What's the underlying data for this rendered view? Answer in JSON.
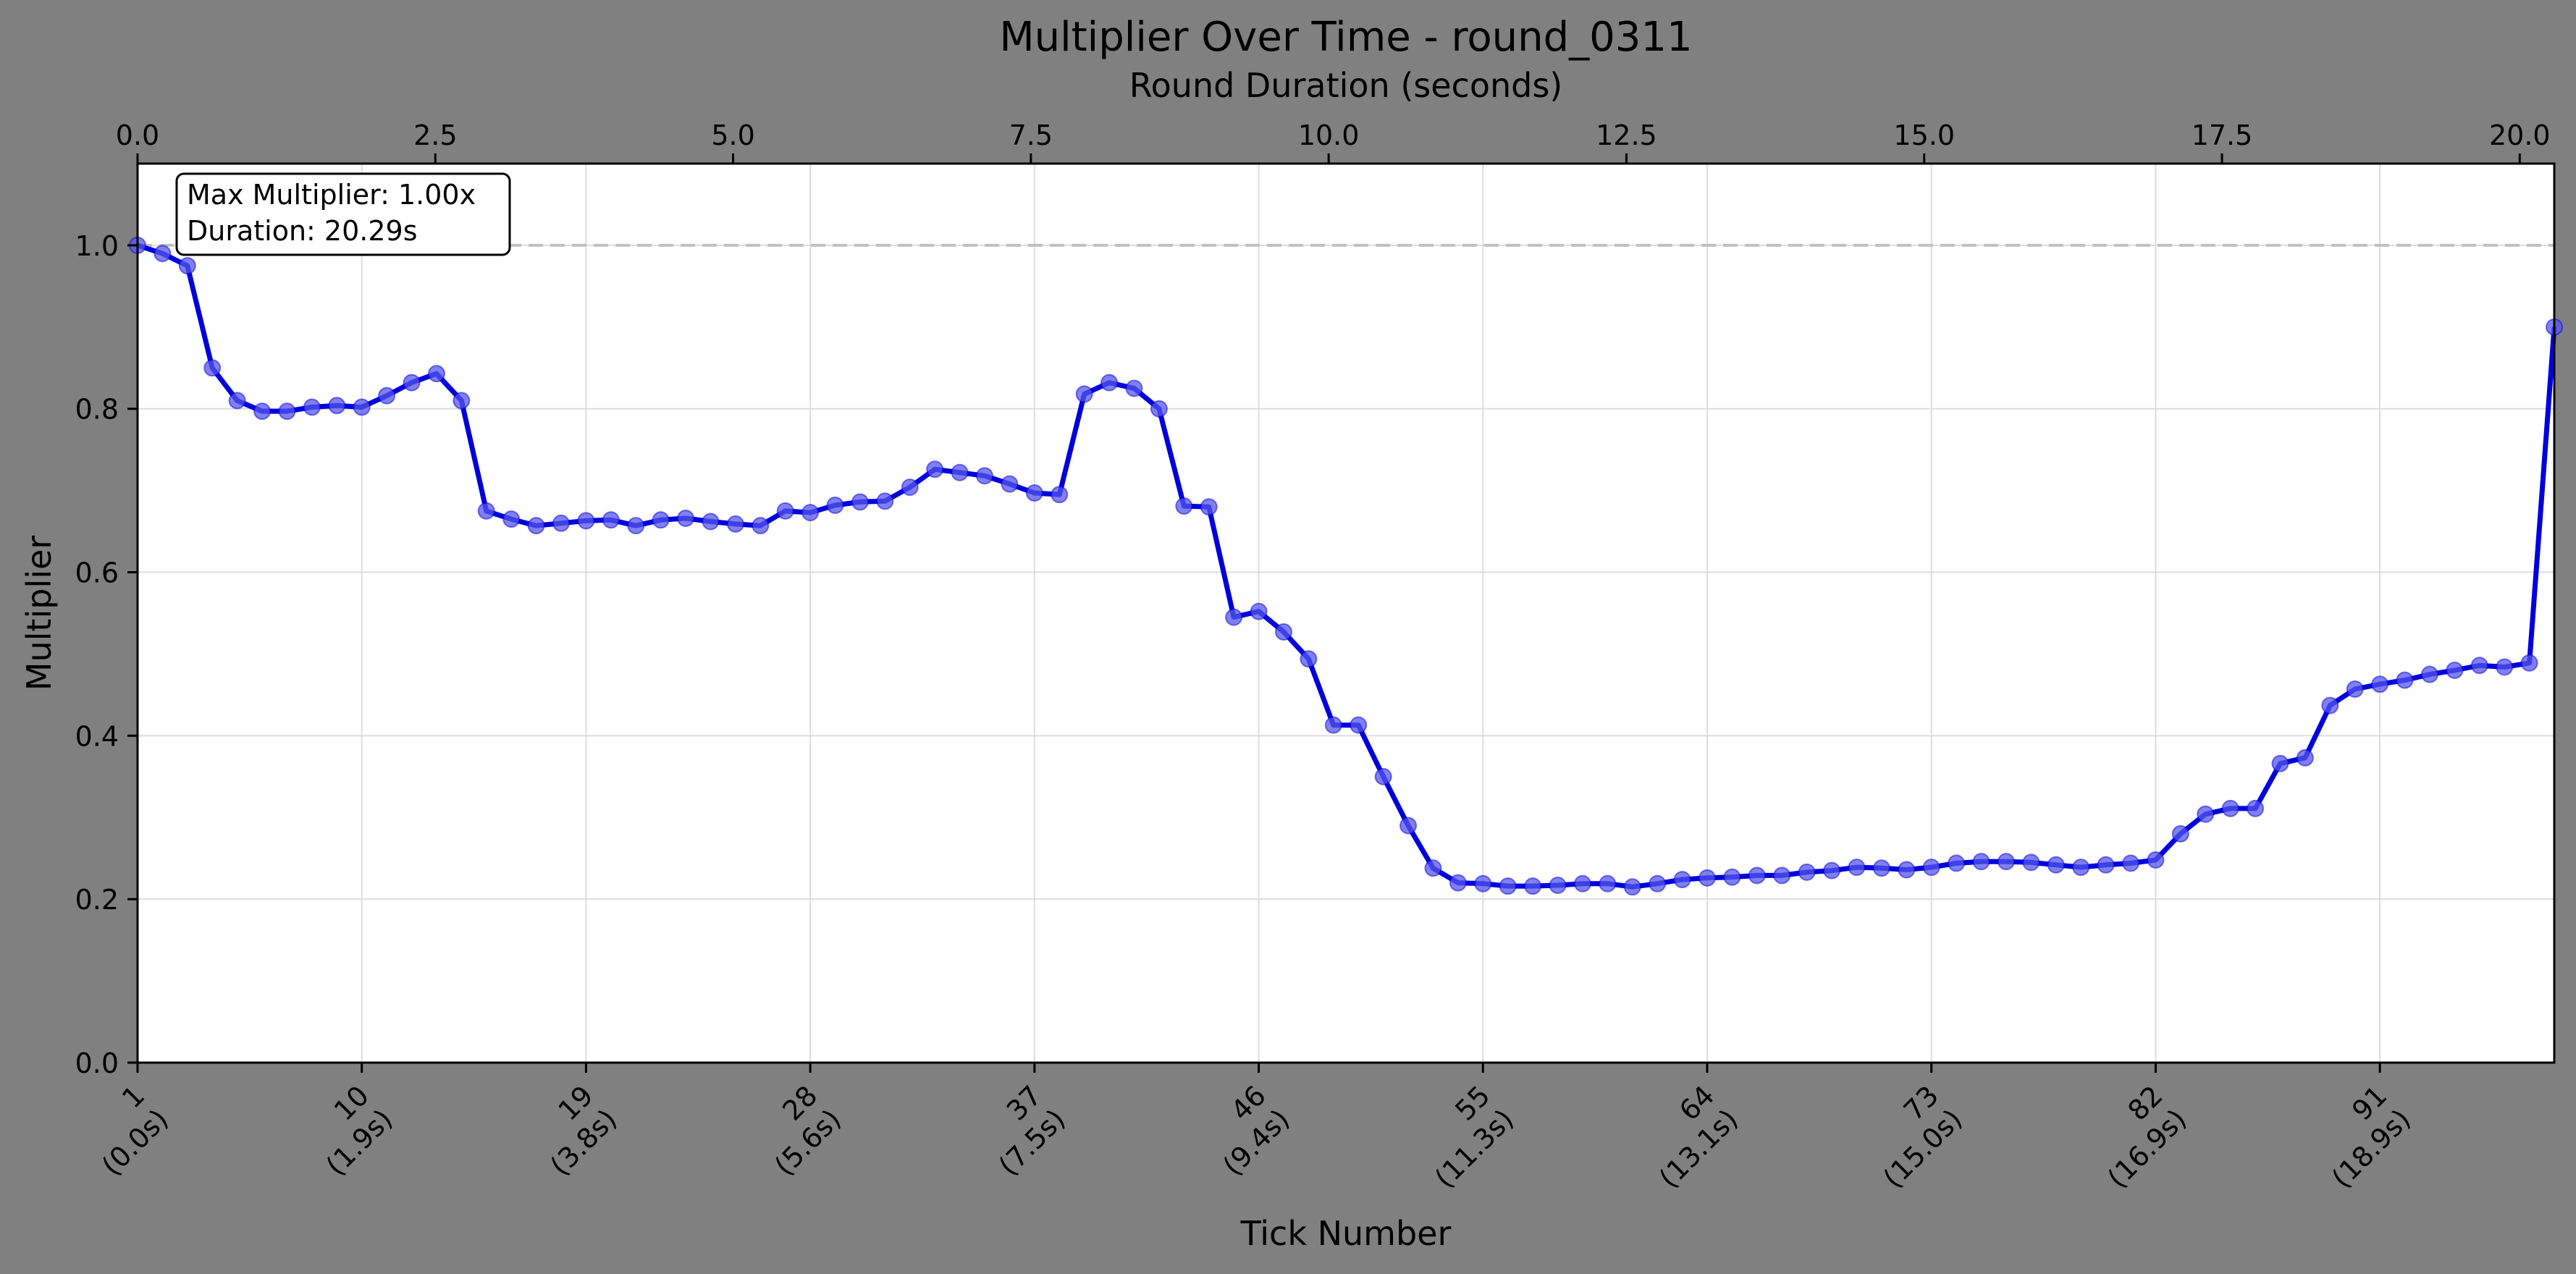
{
  "chart_data": {
    "type": "line",
    "title": "Multiplier Over Time - round_0311",
    "xlabel": "Tick Number",
    "ylabel": "Multiplier",
    "x2label": "Round Duration (seconds)",
    "xlim": [
      1,
      98
    ],
    "ylim": [
      0,
      1.1
    ],
    "x2lim": [
      0,
      20.29
    ],
    "yticks": [
      0.0,
      0.2,
      0.4,
      0.6,
      0.8,
      1.0
    ],
    "ytick_labels": [
      "0.0",
      "0.2",
      "0.4",
      "0.6",
      "0.8",
      "1.0"
    ],
    "x2ticks": [
      0,
      2.5,
      5,
      7.5,
      10,
      12.5,
      15,
      17.5,
      20
    ],
    "x2tick_labels": [
      "0.0",
      "2.5",
      "5.0",
      "7.5",
      "10.0",
      "12.5",
      "15.0",
      "17.5",
      "20.0"
    ],
    "xticks": [
      1,
      10,
      19,
      28,
      37,
      46,
      55,
      64,
      73,
      82,
      91
    ],
    "xtick_labels": [
      [
        "1",
        "(0.0s)"
      ],
      [
        "10",
        "(1.9s)"
      ],
      [
        "19",
        "(3.8s)"
      ],
      [
        "28",
        "(5.6s)"
      ],
      [
        "37",
        "(7.5s)"
      ],
      [
        "46",
        "(9.4s)"
      ],
      [
        "55",
        "(11.3s)"
      ],
      [
        "64",
        "(13.1s)"
      ],
      [
        "73",
        "(15.0s)"
      ],
      [
        "82",
        "(16.9s)"
      ],
      [
        "91",
        "(18.9s)"
      ]
    ],
    "grid": true,
    "reference_line": 1.0,
    "annotation": [
      "Max Multiplier: 1.00x",
      "Duration: 20.29s"
    ],
    "colors": {
      "line": "#0000dd",
      "marker": "#5555ee",
      "reference": "#c0c0c0",
      "background": "#808080"
    },
    "x": [
      1,
      2,
      3,
      4,
      5,
      6,
      7,
      8,
      9,
      10,
      11,
      12,
      13,
      14,
      15,
      16,
      17,
      18,
      19,
      20,
      21,
      22,
      23,
      24,
      25,
      26,
      27,
      28,
      29,
      30,
      31,
      32,
      33,
      34,
      35,
      36,
      37,
      38,
      39,
      40,
      41,
      42,
      43,
      44,
      45,
      46,
      47,
      48,
      49,
      50,
      51,
      52,
      53,
      54,
      55,
      56,
      57,
      58,
      59,
      60,
      61,
      62,
      63,
      64,
      65,
      66,
      67,
      68,
      69,
      70,
      71,
      72,
      73,
      74,
      75,
      76,
      77,
      78,
      79,
      80,
      81,
      82,
      83,
      84,
      85,
      86,
      87,
      88,
      89,
      90,
      91,
      92,
      93,
      94,
      95,
      96,
      97,
      98
    ],
    "y": [
      1.0,
      0.99,
      0.975,
      0.85,
      0.81,
      0.797,
      0.797,
      0.802,
      0.804,
      0.802,
      0.816,
      0.832,
      0.843,
      0.81,
      0.675,
      0.665,
      0.657,
      0.66,
      0.663,
      0.664,
      0.657,
      0.664,
      0.666,
      0.662,
      0.659,
      0.657,
      0.675,
      0.673,
      0.682,
      0.686,
      0.687,
      0.704,
      0.726,
      0.722,
      0.718,
      0.708,
      0.697,
      0.695,
      0.818,
      0.832,
      0.825,
      0.8,
      0.681,
      0.68,
      0.545,
      0.552,
      0.527,
      0.494,
      0.413,
      0.413,
      0.35,
      0.29,
      0.238,
      0.22,
      0.219,
      0.216,
      0.216,
      0.217,
      0.219,
      0.219,
      0.215,
      0.219,
      0.224,
      0.226,
      0.227,
      0.229,
      0.229,
      0.233,
      0.235,
      0.239,
      0.238,
      0.236,
      0.239,
      0.244,
      0.246,
      0.246,
      0.245,
      0.242,
      0.239,
      0.242,
      0.244,
      0.248,
      0.28,
      0.304,
      0.311,
      0.311,
      0.366,
      0.373,
      0.437,
      0.457,
      0.463,
      0.468,
      0.475,
      0.48,
      0.486,
      0.484,
      0.489,
      0.9
    ]
  }
}
